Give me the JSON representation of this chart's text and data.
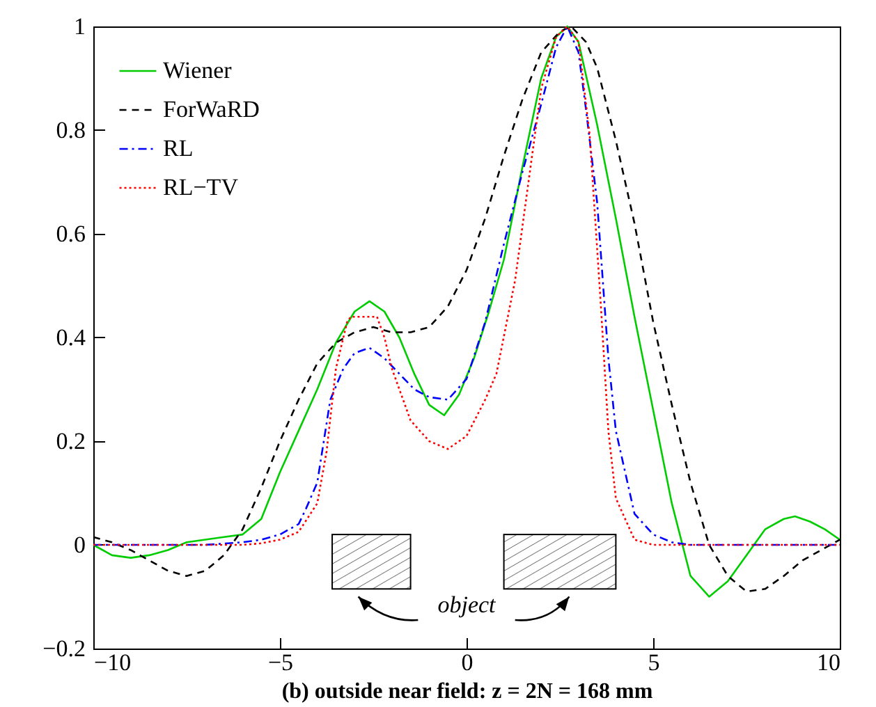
{
  "chart_data": {
    "type": "line",
    "xlabel": "(b) outside near field: z = 2N = 168 mm",
    "annotations": [
      "object"
    ],
    "xlim": [
      -10,
      10
    ],
    "xticks": [
      -10,
      -5,
      0,
      5,
      10
    ],
    "ylim": [
      -0.2,
      1
    ],
    "yticks": [
      -0.2,
      0,
      0.2,
      0.4,
      0.6,
      0.8,
      1
    ],
    "grid": false,
    "legend": "top left",
    "series": [
      {
        "name": "Wiener",
        "color": "#00cc00",
        "line_style": "solid",
        "x": [
          -10,
          -9.5,
          -9,
          -8.5,
          -8,
          -7.5,
          -7,
          -6.5,
          -6,
          -5.5,
          -5,
          -4.5,
          -4,
          -3.5,
          -3,
          -2.6,
          -2.2,
          -1.8,
          -1.4,
          -1,
          -0.6,
          -0.2,
          0.2,
          0.6,
          1,
          1.5,
          2,
          2.4,
          2.7,
          3,
          3.5,
          4,
          4.5,
          5,
          5.5,
          6,
          6.5,
          7,
          7.5,
          8,
          8.5,
          8.8,
          9.2,
          9.6,
          10
        ],
        "values": [
          0,
          -0.02,
          -0.025,
          -0.02,
          -0.01,
          0.005,
          0.01,
          0.015,
          0.02,
          0.05,
          0.14,
          0.22,
          0.3,
          0.39,
          0.45,
          0.47,
          0.45,
          0.4,
          0.33,
          0.27,
          0.25,
          0.29,
          0.36,
          0.45,
          0.55,
          0.73,
          0.9,
          0.98,
          1.0,
          0.97,
          0.81,
          0.63,
          0.44,
          0.26,
          0.08,
          -0.06,
          -0.1,
          -0.07,
          -0.02,
          0.03,
          0.05,
          0.055,
          0.045,
          0.03,
          0.01
        ]
      },
      {
        "name": "ForWaRD",
        "color": "#000000",
        "line_style": "dashed",
        "x": [
          -10,
          -9.5,
          -9,
          -8.5,
          -8,
          -7.5,
          -7,
          -6.5,
          -6,
          -5.5,
          -5,
          -4.5,
          -4,
          -3.5,
          -3,
          -2.5,
          -2,
          -1.5,
          -1,
          -0.5,
          0,
          0.5,
          1,
          1.5,
          2,
          2.5,
          2.8,
          3.2,
          3.5,
          4,
          4.5,
          5,
          5.5,
          6,
          6.5,
          7,
          7.5,
          8,
          8.5,
          9,
          9.5,
          10
        ],
        "values": [
          0.015,
          0.005,
          -0.01,
          -0.03,
          -0.05,
          -0.06,
          -0.05,
          -0.02,
          0.03,
          0.11,
          0.2,
          0.28,
          0.35,
          0.39,
          0.41,
          0.42,
          0.41,
          0.41,
          0.42,
          0.46,
          0.53,
          0.63,
          0.75,
          0.86,
          0.95,
          0.99,
          1.0,
          0.97,
          0.92,
          0.78,
          0.62,
          0.43,
          0.27,
          0.12,
          0.0,
          -0.06,
          -0.09,
          -0.085,
          -0.06,
          -0.03,
          -0.01,
          0.01
        ]
      },
      {
        "name": "RL",
        "color": "#0000ff",
        "line_style": "dashdot",
        "x": [
          -10,
          -7,
          -6,
          -5.5,
          -5,
          -4.5,
          -4.3,
          -4,
          -3.65,
          -3.3,
          -3,
          -2.6,
          -2.2,
          -1.8,
          -1.4,
          -1,
          -0.5,
          0,
          0.5,
          1,
          1.5,
          2,
          2.4,
          2.7,
          3,
          3.2,
          3.5,
          3.8,
          4,
          4.5,
          5,
          5.5,
          6,
          10
        ],
        "values": [
          0,
          0,
          0.005,
          0.01,
          0.02,
          0.04,
          0.07,
          0.12,
          0.28,
          0.34,
          0.37,
          0.38,
          0.36,
          0.33,
          0.3,
          0.285,
          0.28,
          0.32,
          0.43,
          0.58,
          0.72,
          0.85,
          0.96,
          1.0,
          0.95,
          0.84,
          0.66,
          0.36,
          0.22,
          0.06,
          0.02,
          0.005,
          0,
          0
        ]
      },
      {
        "name": "RL−TV",
        "color": "#ff0000",
        "line_style": "dotted",
        "x": [
          -10,
          -6,
          -5.5,
          -5,
          -4.5,
          -4,
          -3.75,
          -3.5,
          -3.2,
          -3.1,
          -2.4,
          -2.2,
          -2,
          -1.5,
          -1,
          -0.5,
          0,
          0.5,
          0.8,
          1.3,
          2,
          2.4,
          2.7,
          3,
          3.3,
          3.6,
          3.8,
          4,
          4.5,
          5,
          10
        ],
        "values": [
          0,
          0,
          0.003,
          0.01,
          0.025,
          0.08,
          0.18,
          0.34,
          0.43,
          0.44,
          0.44,
          0.4,
          0.34,
          0.24,
          0.2,
          0.185,
          0.21,
          0.28,
          0.33,
          0.51,
          0.88,
          0.98,
          1.0,
          0.97,
          0.79,
          0.46,
          0.22,
          0.09,
          0.01,
          0,
          0
        ]
      }
    ]
  }
}
